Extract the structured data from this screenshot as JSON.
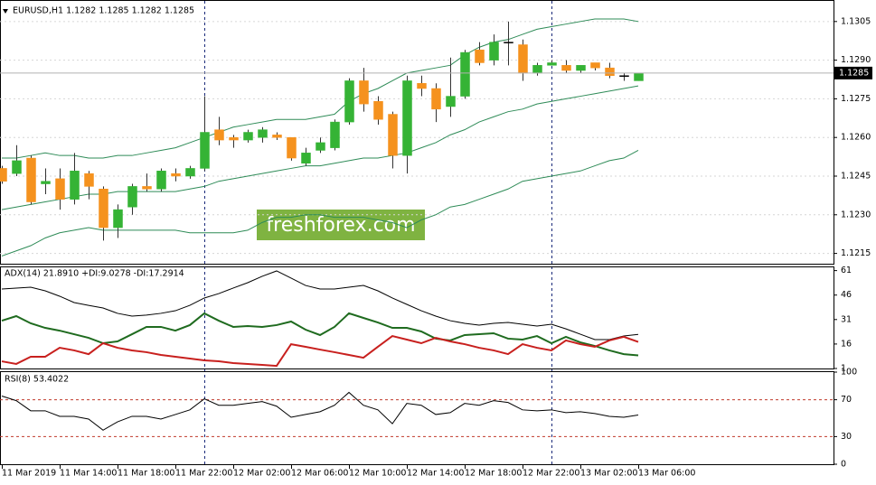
{
  "chart_data": [
    {
      "type": "candlestick",
      "title": "EURUSD,H1 1.1282 1.1285 1.1282 1.1285",
      "categories": [
        "11 Mar 2019",
        null,
        null,
        null,
        "11 Mar 14:00",
        null,
        null,
        null,
        "11 Mar 18:00",
        null,
        null,
        null,
        "11 Mar 22:00",
        null,
        null,
        null,
        "12 Mar 02:00",
        null,
        null,
        null,
        "12 Mar 06:00",
        null,
        null,
        null,
        "12 Mar 10:00",
        null,
        null,
        null,
        "12 Mar 14:00",
        null,
        null,
        null,
        "12 Mar 18:00",
        null,
        null,
        null,
        "12 Mar 22:00",
        null,
        null,
        null,
        "13 Mar 02:00",
        null,
        null,
        null,
        "13 Mar 06:00"
      ],
      "open": [
        1.1248,
        1.1246,
        1.1252,
        1.1242,
        1.1244,
        1.1236,
        1.1246,
        1.124,
        1.1225,
        1.1233,
        1.1241,
        1.124,
        1.1246,
        1.1245,
        1.1248,
        1.1263,
        1.126,
        1.1259,
        1.126,
        1.1261,
        1.126,
        1.125,
        1.1255,
        1.1256,
        1.1266,
        1.1282,
        1.1274,
        1.1269,
        1.1253,
        1.1281,
        1.1279,
        1.1272,
        1.1276,
        1.1294,
        1.129,
        1.1297,
        1.1296,
        1.1285,
        1.1288,
        1.1288,
        1.1286,
        1.1289,
        1.1287,
        1.1284,
        1.1282
      ],
      "high": [
        1.1249,
        1.1257,
        1.1253,
        1.1248,
        1.1248,
        1.1254,
        1.1247,
        1.1241,
        1.1234,
        1.1242,
        1.1246,
        1.1248,
        1.1248,
        1.1249,
        1.1276,
        1.1268,
        1.1261,
        1.1263,
        1.1264,
        1.1262,
        1.126,
        1.1256,
        1.126,
        1.1267,
        1.1283,
        1.1287,
        1.1276,
        1.127,
        1.1284,
        1.1284,
        1.1281,
        1.1291,
        1.1294,
        1.1297,
        1.13,
        1.1305,
        1.1298,
        1.1289,
        1.129,
        1.129,
        1.1288,
        1.1289,
        1.1289,
        1.1285,
        1.1285
      ],
      "low": [
        1.1242,
        1.1245,
        1.1234,
        1.1238,
        1.1232,
        1.1234,
        1.1236,
        1.122,
        1.1221,
        1.123,
        1.1239,
        1.1239,
        1.1243,
        1.1244,
        1.1247,
        1.1257,
        1.1256,
        1.1258,
        1.1258,
        1.1259,
        1.1251,
        1.1249,
        1.1254,
        1.1255,
        1.1265,
        1.127,
        1.1265,
        1.1248,
        1.1246,
        1.1276,
        1.1266,
        1.1268,
        1.1275,
        1.1288,
        1.1288,
        1.1288,
        1.1282,
        1.1284,
        1.1288,
        1.1285,
        1.1285,
        1.1286,
        1.1283,
        1.1282,
        1.1282
      ],
      "close": [
        1.1243,
        1.1251,
        1.1235,
        1.1243,
        1.1236,
        1.1247,
        1.1241,
        1.1225,
        1.1232,
        1.1241,
        1.124,
        1.1247,
        1.1245,
        1.1248,
        1.1262,
        1.1259,
        1.1259,
        1.1262,
        1.1263,
        1.126,
        1.1252,
        1.1254,
        1.1258,
        1.1266,
        1.1282,
        1.1273,
        1.1267,
        1.1253,
        1.1282,
        1.1279,
        1.1271,
        1.1276,
        1.1293,
        1.1289,
        1.1297,
        1.1297,
        1.1285,
        1.1288,
        1.1289,
        1.1286,
        1.1288,
        1.1287,
        1.1284,
        1.1284,
        1.1285
      ],
      "up_color": "#35b335",
      "down_color": "#f5921e",
      "doji_color": "#000000",
      "series": [
        {
          "color": "#2e8b57",
          "values": [
            1.1252,
            1.1252,
            1.1253,
            1.1254,
            1.1253,
            1.1253,
            1.1252,
            1.1252,
            1.1253,
            1.1253,
            1.1254,
            1.1255,
            1.1256,
            1.1258,
            1.126,
            1.1262,
            1.1264,
            1.1265,
            1.1266,
            1.1267,
            1.1267,
            1.1267,
            1.1268,
            1.1269,
            1.1274,
            1.1277,
            1.1279,
            1.1282,
            1.1285,
            1.1286,
            1.1287,
            1.1288,
            1.1292,
            1.1295,
            1.1297,
            1.1298,
            1.13,
            1.1302,
            1.1303,
            1.1304,
            1.1305,
            1.1306,
            1.1306,
            1.1306,
            1.1305
          ]
        },
        {
          "color": "#2e8b57",
          "values": [
            1.1232,
            1.1233,
            1.1234,
            1.1235,
            1.1236,
            1.1237,
            1.1238,
            1.1238,
            1.1239,
            1.1239,
            1.1239,
            1.1239,
            1.1239,
            1.124,
            1.1241,
            1.1243,
            1.1244,
            1.1245,
            1.1246,
            1.1247,
            1.1248,
            1.1249,
            1.1249,
            1.125,
            1.1251,
            1.1252,
            1.1252,
            1.1253,
            1.1254,
            1.1256,
            1.1258,
            1.1261,
            1.1263,
            1.1266,
            1.1268,
            1.127,
            1.1271,
            1.1273,
            1.1274,
            1.1275,
            1.1276,
            1.1277,
            1.1278,
            1.1279,
            1.128
          ]
        },
        {
          "color": "#2e8b57",
          "values": [
            1.1214,
            1.1216,
            1.1218,
            1.1221,
            1.1223,
            1.1224,
            1.1225,
            1.1224,
            1.1224,
            1.1224,
            1.1224,
            1.1224,
            1.1224,
            1.1223,
            1.1223,
            1.1223,
            1.1223,
            1.1224,
            1.1227,
            1.1229,
            1.1229,
            1.123,
            1.123,
            1.1229,
            1.1229,
            1.1229,
            1.1228,
            1.1227,
            1.1225,
            1.1228,
            1.123,
            1.1233,
            1.1234,
            1.1236,
            1.1238,
            1.124,
            1.1243,
            1.1244,
            1.1245,
            1.1246,
            1.1247,
            1.1249,
            1.1251,
            1.1252,
            1.1255
          ]
        }
      ],
      "ylim": [
        1.1211,
        1.1313
      ],
      "yticks": [
        1.1305,
        {
          "value": 1.129,
          "label": "1.1290"
        },
        1.1275,
        {
          "value": 1.126,
          "label": "1.1260"
        },
        1.1245,
        {
          "value": 1.123,
          "label": "1.1230"
        },
        1.1215
      ],
      "grid": true,
      "current_price": 1.1285
    },
    {
      "type": "line",
      "title": "ADX(14) 21.8910 +DI:9.0278 -DI:17.2914",
      "series": [
        {
          "color": "#000000",
          "values": [
            49.7,
            50.3,
            50.8,
            48.6,
            45.3,
            41.4,
            39.7,
            38.1,
            34.8,
            33.1,
            33.7,
            34.8,
            36.4,
            39.7,
            44.2,
            46.9,
            50.3,
            53.6,
            57.5,
            60.8,
            56.4,
            51.9,
            49.7,
            49.7,
            50.8,
            51.9,
            48.6,
            44.2,
            40.3,
            36.4,
            33.1,
            30.3,
            28.7,
            27.6,
            28.7,
            29.2,
            28.1,
            27.0,
            28.1,
            25.3,
            22.0,
            18.7,
            18.7,
            20.9,
            21.891
          ]
        },
        {
          "color": "#1f6b1f",
          "values": [
            30.3,
            33.1,
            28.7,
            25.9,
            24.2,
            22.0,
            19.8,
            16.5,
            17.6,
            22.0,
            26.5,
            26.5,
            24.2,
            27.6,
            34.8,
            30.3,
            26.5,
            27.0,
            26.5,
            27.6,
            29.8,
            24.8,
            21.5,
            26.5,
            34.8,
            32.0,
            29.2,
            25.9,
            25.9,
            23.7,
            19.3,
            18.2,
            21.5,
            22.0,
            22.6,
            19.3,
            18.7,
            20.9,
            16.5,
            20.4,
            17.0,
            14.8,
            12.1,
            9.8,
            9.0278
          ]
        },
        {
          "color": "#c8201e",
          "values": [
            5.4,
            3.8,
            8.2,
            8.2,
            13.7,
            12.1,
            9.8,
            16.5,
            13.7,
            12.1,
            11.0,
            9.3,
            8.2,
            7.1,
            6.0,
            5.4,
            4.3,
            3.8,
            3.2,
            2.6,
            15.9,
            14.3,
            12.6,
            11.0,
            9.3,
            7.6,
            14.3,
            20.9,
            18.7,
            16.5,
            19.8,
            17.6,
            15.9,
            13.7,
            12.1,
            9.8,
            15.9,
            13.7,
            12.1,
            18.2,
            15.9,
            14.3,
            18.2,
            20.4,
            17.2914
          ]
        }
      ],
      "ylim": [
        1,
        63
      ],
      "yticks": [
        61,
        46,
        31,
        16,
        1
      ]
    },
    {
      "type": "line",
      "title": "RSI(8) 53.4022",
      "series": [
        {
          "color": "#000000",
          "values": [
            74,
            69,
            58,
            58,
            52,
            52,
            49,
            37,
            46,
            52,
            52,
            49,
            54,
            59,
            71,
            64,
            64,
            66,
            68,
            63,
            51,
            54,
            57,
            64,
            78,
            64,
            59,
            44,
            66,
            64,
            54,
            56,
            66,
            64,
            69,
            67,
            59,
            58,
            59,
            56,
            57,
            55,
            52,
            51,
            53.4022
          ]
        }
      ],
      "ylim": [
        0,
        100
      ],
      "yticks": [
        100,
        70,
        30,
        0
      ],
      "levels": [
        70,
        30
      ],
      "level_color": "#c0392b"
    }
  ],
  "watermark": "freshforex.com"
}
